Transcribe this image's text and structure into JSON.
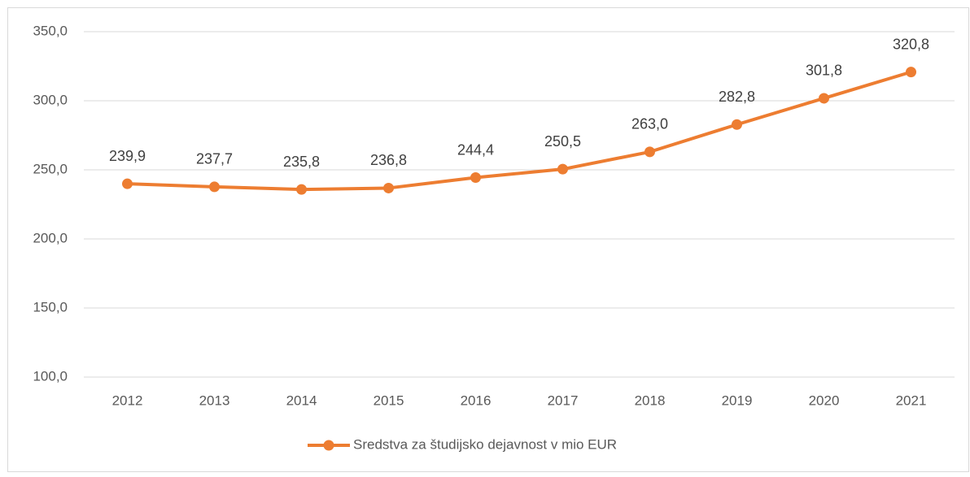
{
  "chart_data": {
    "type": "line",
    "categories": [
      "2012",
      "2013",
      "2014",
      "2015",
      "2016",
      "2017",
      "2018",
      "2019",
      "2020",
      "2021"
    ],
    "series": [
      {
        "name": "Sredstva za študijsko dejavnost v mio EUR",
        "color": "#ed7d31",
        "values": [
          239.9,
          237.7,
          235.8,
          236.8,
          244.4,
          250.5,
          263.0,
          282.8,
          301.8,
          320.8
        ],
        "value_labels": [
          "239,9",
          "237,7",
          "235,8",
          "236,8",
          "244,4",
          "250,5",
          "263,0",
          "282,8",
          "301,8",
          "320,8"
        ]
      }
    ],
    "ylim": [
      100,
      350
    ],
    "yticks": [
      {
        "value": 100,
        "label": "100,0"
      },
      {
        "value": 150,
        "label": "150,0"
      },
      {
        "value": 200,
        "label": "200,0"
      },
      {
        "value": 250,
        "label": "250,0"
      },
      {
        "value": 300,
        "label": "300,0"
      },
      {
        "value": 350,
        "label": "350,0"
      }
    ],
    "grid": true,
    "legend": "bottom"
  }
}
